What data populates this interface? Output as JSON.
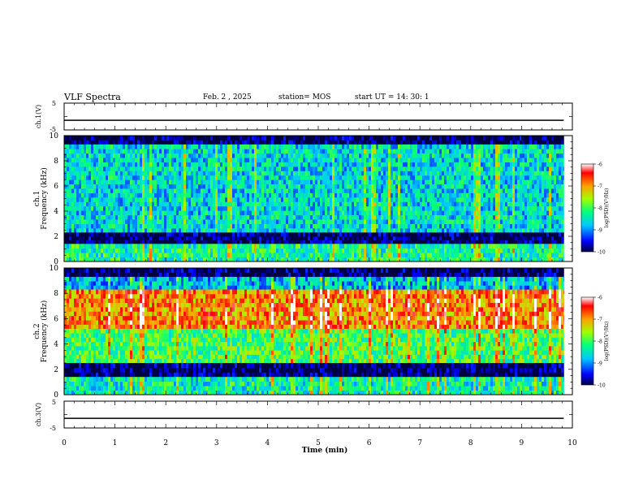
{
  "header": {
    "title": "VLF Spectra",
    "date": "Feb. 2  , 2025",
    "station": "station= MOS",
    "start_ut": "start  UT =   14: 30: 1"
  },
  "chart_data": [
    {
      "type": "line",
      "ylabel": "ch.1(V)",
      "yticks": [
        "5",
        "-5"
      ],
      "ylim": [
        -5,
        5
      ],
      "level": -1.4
    },
    {
      "type": "heatmap",
      "ylabel_top": "ch.1",
      "ylabel": "Frequency (kHz)",
      "yticks": [
        "0",
        "2",
        "4",
        "6",
        "8",
        "10"
      ],
      "ylim": [
        0,
        10
      ],
      "xlim": [
        0,
        10
      ],
      "colorbar": {
        "label": "log(PSD)(V²/Hz)",
        "ticks": [
          "-6",
          "-7",
          "-8",
          "-9",
          "-10"
        ],
        "range": [
          -10,
          -6
        ]
      },
      "bands": [
        {
          "from": 9.3,
          "to": 10,
          "level": -10
        },
        {
          "from": 2.3,
          "to": 9.3,
          "level": -8.6
        },
        {
          "from": 1.4,
          "to": 2.3,
          "level": -10
        },
        {
          "from": 0,
          "to": 1.4,
          "level": -8.3
        }
      ]
    },
    {
      "type": "heatmap",
      "ylabel_top": "ch.2",
      "ylabel": "Frequency (kHz)",
      "yticks": [
        "0",
        "2",
        "4",
        "6",
        "8",
        "10"
      ],
      "ylim": [
        0,
        10
      ],
      "xlim": [
        0,
        10
      ],
      "colorbar": {
        "label": "log(PSD)(V²/Hz)",
        "ticks": [
          "-6",
          "-7",
          "-8",
          "-9",
          "-10"
        ],
        "range": [
          -10,
          -6
        ]
      },
      "bands": [
        {
          "from": 9.3,
          "to": 10,
          "level": -10
        },
        {
          "from": 8.3,
          "to": 9.3,
          "level": -8.8
        },
        {
          "from": 5.2,
          "to": 8.3,
          "level": -6.9
        },
        {
          "from": 2.5,
          "to": 5.2,
          "level": -8.0
        },
        {
          "from": 1.4,
          "to": 2.5,
          "level": -10
        },
        {
          "from": 0,
          "to": 1.4,
          "level": -8.4
        }
      ]
    },
    {
      "type": "line",
      "ylabel": "ch.3(V)",
      "yticks": [
        "5",
        "-5"
      ],
      "ylim": [
        -5,
        5
      ],
      "level": -1.4
    }
  ],
  "xaxis": {
    "label": "Time  (min)",
    "ticks": [
      "0",
      "1",
      "2",
      "3",
      "4",
      "5",
      "6",
      "7",
      "8",
      "9",
      "10"
    ],
    "xlim": [
      0,
      10
    ],
    "data_end": 9.83
  }
}
